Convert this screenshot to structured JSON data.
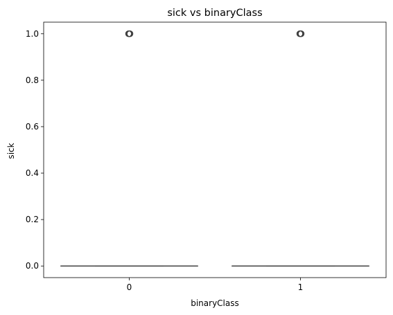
{
  "chart_data": {
    "type": "box",
    "title": "sick vs binaryClass",
    "xlabel": "binaryClass",
    "ylabel": "sick",
    "categories": [
      "0",
      "1"
    ],
    "ylim": [
      -0.05,
      1.05
    ],
    "yticks": [
      0.0,
      0.2,
      0.4,
      0.6,
      0.8,
      1.0
    ],
    "ytick_labels": [
      "0.0",
      "0.2",
      "0.4",
      "0.6",
      "0.8",
      "1.0"
    ],
    "boxes": [
      {
        "category": "0",
        "min": 0,
        "q1": 0,
        "median": 0,
        "q3": 0,
        "max": 0,
        "outliers": [
          1
        ]
      },
      {
        "category": "1",
        "min": 0,
        "q1": 0,
        "median": 0,
        "q3": 0,
        "max": 0,
        "outliers": [
          1
        ]
      }
    ],
    "grid": false,
    "legend": "none",
    "colors": {
      "box": "#4c72b0",
      "line": "#3d3d3d",
      "axis": "#000000"
    }
  }
}
